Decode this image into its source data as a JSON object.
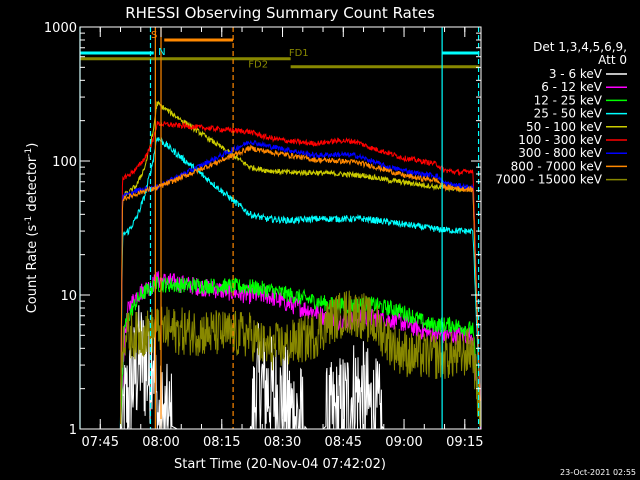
{
  "chart_data": {
    "type": "line",
    "title": "RHESSI Observing Summary Count Rates",
    "xlabel": "Start Time (20-Nov-04 07:42:02)",
    "ylabel_main": "Count Rate (s",
    "ylabel_sup": "-1",
    "ylabel_mid": " detector",
    "ylabel_end": ")",
    "y_scale": "log",
    "ylim": [
      1,
      1000
    ],
    "y_ticks": [
      {
        "v": 1,
        "label": "1"
      },
      {
        "v": 10,
        "label": "10"
      },
      {
        "v": 100,
        "label": "100"
      },
      {
        "v": 1000,
        "label": "1000"
      }
    ],
    "x_range_min": [
      -2,
      97
    ],
    "x_ticks": [
      {
        "m": 3,
        "label": "07:45"
      },
      {
        "m": 18,
        "label": "08:00"
      },
      {
        "m": 33,
        "label": "08:15"
      },
      {
        "m": 48,
        "label": "08:30"
      },
      {
        "m": 63,
        "label": "08:45"
      },
      {
        "m": 78,
        "label": "09:00"
      },
      {
        "m": 93,
        "label": "09:15"
      }
    ],
    "legend_title_1": "Det 1,3,4,5,6,9,",
    "legend_title_2": "Att 0",
    "legend_position": "right",
    "series": [
      {
        "name": "3 - 6 keV",
        "color": "#ffffff",
        "noise": 0.45,
        "points": [
          [
            -2,
            1
          ],
          [
            8,
            1
          ],
          [
            10,
            1.8
          ],
          [
            13,
            3.5
          ],
          [
            15,
            2.5
          ],
          [
            16,
            4.5
          ],
          [
            17,
            1.2
          ],
          [
            22,
            1
          ],
          [
            40,
            1
          ],
          [
            42,
            2.2
          ],
          [
            48,
            1.6
          ],
          [
            53,
            1.1
          ],
          [
            54,
            1
          ],
          [
            58,
            1
          ],
          [
            62,
            1.3
          ],
          [
            66,
            1.9
          ],
          [
            70,
            1.4
          ],
          [
            73,
            1
          ],
          [
            97,
            1
          ]
        ]
      },
      {
        "name": "6 - 12 keV",
        "color": "#ff00ff",
        "noise": 0.07,
        "points": [
          [
            -2,
            1
          ],
          [
            8,
            1
          ],
          [
            9,
            5
          ],
          [
            10,
            8
          ],
          [
            12,
            10
          ],
          [
            14,
            11
          ],
          [
            16,
            12
          ],
          [
            17,
            13
          ],
          [
            40,
            10
          ],
          [
            44,
            10
          ],
          [
            50,
            8.5
          ],
          [
            56,
            7.5
          ],
          [
            60,
            6.5
          ],
          [
            64,
            6.5
          ],
          [
            70,
            6.8
          ],
          [
            76,
            6.5
          ],
          [
            80,
            5.8
          ],
          [
            84,
            5.2
          ],
          [
            88,
            5
          ],
          [
            92,
            5
          ],
          [
            95,
            5
          ],
          [
            97,
            1
          ]
        ]
      },
      {
        "name": "12 - 25 keV",
        "color": "#00ff00",
        "noise": 0.06,
        "points": [
          [
            -2,
            1
          ],
          [
            8,
            1
          ],
          [
            9,
            6
          ],
          [
            11,
            8
          ],
          [
            13,
            10
          ],
          [
            15,
            11
          ],
          [
            17,
            12
          ],
          [
            40,
            11.5
          ],
          [
            44,
            11
          ],
          [
            50,
            10
          ],
          [
            56,
            9
          ],
          [
            60,
            8.5
          ],
          [
            64,
            8.3
          ],
          [
            70,
            8.5
          ],
          [
            76,
            7.8
          ],
          [
            80,
            7
          ],
          [
            84,
            6
          ],
          [
            90,
            6
          ],
          [
            95,
            5.5
          ],
          [
            97,
            1
          ]
        ]
      },
      {
        "name": "25 - 50 keV",
        "color": "#00ffff",
        "noise": 0.025,
        "points": [
          [
            -2,
            1
          ],
          [
            8,
            1
          ],
          [
            8.5,
            28
          ],
          [
            10,
            30
          ],
          [
            12,
            38
          ],
          [
            14,
            55
          ],
          [
            16,
            100
          ],
          [
            17,
            150
          ],
          [
            40,
            40
          ],
          [
            44,
            37
          ],
          [
            50,
            36
          ],
          [
            56,
            37
          ],
          [
            62,
            37
          ],
          [
            68,
            37
          ],
          [
            74,
            35
          ],
          [
            80,
            33
          ],
          [
            86,
            31
          ],
          [
            92,
            30
          ],
          [
            95,
            30
          ],
          [
            97,
            1
          ]
        ]
      },
      {
        "name": "50 - 100 keV",
        "color": "#cccc00",
        "noise": 0.02,
        "points": [
          [
            8,
            1
          ],
          [
            8.5,
            55
          ],
          [
            10,
            58
          ],
          [
            12,
            66
          ],
          [
            14,
            90
          ],
          [
            16,
            160
          ],
          [
            17,
            270
          ],
          [
            40,
            90
          ],
          [
            44,
            85
          ],
          [
            50,
            82
          ],
          [
            56,
            82
          ],
          [
            62,
            80
          ],
          [
            68,
            78
          ],
          [
            74,
            72
          ],
          [
            80,
            68
          ],
          [
            86,
            64
          ],
          [
            92,
            62
          ],
          [
            95,
            62
          ],
          [
            97,
            1
          ]
        ]
      },
      {
        "name": "100 - 300 keV",
        "color": "#ff0000",
        "noise": 0.02,
        "points": [
          [
            8,
            1
          ],
          [
            8.5,
            75
          ],
          [
            10,
            78
          ],
          [
            12,
            88
          ],
          [
            14,
            105
          ],
          [
            16,
            140
          ],
          [
            17,
            190
          ],
          [
            40,
            165
          ],
          [
            44,
            150
          ],
          [
            50,
            140
          ],
          [
            56,
            135
          ],
          [
            62,
            142
          ],
          [
            66,
            140
          ],
          [
            70,
            125
          ],
          [
            74,
            115
          ],
          [
            78,
            105
          ],
          [
            82,
            100
          ],
          [
            86,
            95
          ],
          [
            88,
            85
          ],
          [
            92,
            82
          ],
          [
            95,
            85
          ],
          [
            97,
            1
          ]
        ]
      },
      {
        "name": "300 - 800 keV",
        "color": "#0000ff",
        "noise": 0.02,
        "points": [
          [
            8,
            1
          ],
          [
            8.5,
            55
          ],
          [
            10,
            56
          ],
          [
            12,
            60
          ],
          [
            14,
            62
          ],
          [
            16,
            63
          ],
          [
            17,
            64
          ],
          [
            40,
            140
          ],
          [
            44,
            130
          ],
          [
            50,
            120
          ],
          [
            56,
            110
          ],
          [
            62,
            112
          ],
          [
            66,
            110
          ],
          [
            70,
            100
          ],
          [
            74,
            90
          ],
          [
            78,
            85
          ],
          [
            82,
            80
          ],
          [
            86,
            78
          ],
          [
            88,
            68
          ],
          [
            92,
            65
          ],
          [
            95,
            63
          ],
          [
            97,
            1
          ]
        ]
      },
      {
        "name": "800 - 7000 keV",
        "color": "#ff8800",
        "noise": 0.02,
        "points": [
          [
            8,
            1
          ],
          [
            8.5,
            52
          ],
          [
            10,
            54
          ],
          [
            12,
            57
          ],
          [
            14,
            60
          ],
          [
            16,
            62
          ],
          [
            17,
            63
          ],
          [
            40,
            125
          ],
          [
            44,
            118
          ],
          [
            50,
            110
          ],
          [
            56,
            102
          ],
          [
            62,
            100
          ],
          [
            66,
            98
          ],
          [
            70,
            92
          ],
          [
            74,
            85
          ],
          [
            78,
            78
          ],
          [
            82,
            74
          ],
          [
            86,
            72
          ],
          [
            88,
            64
          ],
          [
            92,
            62
          ],
          [
            95,
            61
          ],
          [
            97,
            1
          ]
        ]
      },
      {
        "name": "7000 - 15000 keV",
        "color": "#888800",
        "noise": 0.18,
        "points": [
          [
            -2,
            1
          ],
          [
            8,
            1
          ],
          [
            8.5,
            5
          ],
          [
            12,
            5
          ],
          [
            17,
            5.5
          ],
          [
            40,
            5
          ],
          [
            44,
            4
          ],
          [
            50,
            4.3
          ],
          [
            56,
            5
          ],
          [
            60,
            6.5
          ],
          [
            64,
            7.5
          ],
          [
            68,
            7
          ],
          [
            72,
            5.5
          ],
          [
            76,
            4
          ],
          [
            80,
            3.5
          ],
          [
            84,
            3.5
          ],
          [
            88,
            3.5
          ],
          [
            92,
            3.5
          ],
          [
            95,
            4
          ],
          [
            97,
            1
          ]
        ]
      }
    ],
    "segments_data": [
      {
        "x": [
          -2,
          16.2
        ],
        "y": 640,
        "color": "#00ffff"
      },
      {
        "x": [
          18.8,
          35.8
        ],
        "y": 800,
        "color": "#ff8800"
      },
      {
        "x": [
          87.4,
          96.6
        ],
        "y": 640,
        "color": "#00ffff"
      },
      {
        "x": [
          -2,
          50
        ],
        "y": 580,
        "color": "#888800"
      },
      {
        "x": [
          50,
          96.6
        ],
        "y": 505,
        "color": "#888800"
      }
    ],
    "vlines_data": [
      {
        "x": 15.4,
        "color": "#00ffff",
        "dashed": true
      },
      {
        "x": 16.6,
        "color": "#ff8800",
        "dashed": false
      },
      {
        "x": 18.0,
        "color": "#ff8800",
        "dashed": false
      },
      {
        "x": 35.8,
        "color": "#ff8800",
        "dashed": true
      },
      {
        "x": 87.4,
        "color": "#00ffff",
        "dashed": false
      },
      {
        "x": 96.4,
        "color": "#00ffff",
        "dashed": true
      },
      {
        "x": -2,
        "color": "#00ffff",
        "dashed": false
      }
    ],
    "annotations": [
      {
        "text": "S",
        "x": 16.3,
        "y": 830,
        "color": "#ff8800"
      },
      {
        "text": "N",
        "x": 18.2,
        "y": 620,
        "color": "#00ffff"
      },
      {
        "text": "FD1",
        "x": 52,
        "y": 605,
        "color": "#888800"
      },
      {
        "text": "FD2",
        "x": 42,
        "y": 500,
        "color": "#888800"
      }
    ],
    "timestamp": "23-Oct-2021 02:55"
  }
}
